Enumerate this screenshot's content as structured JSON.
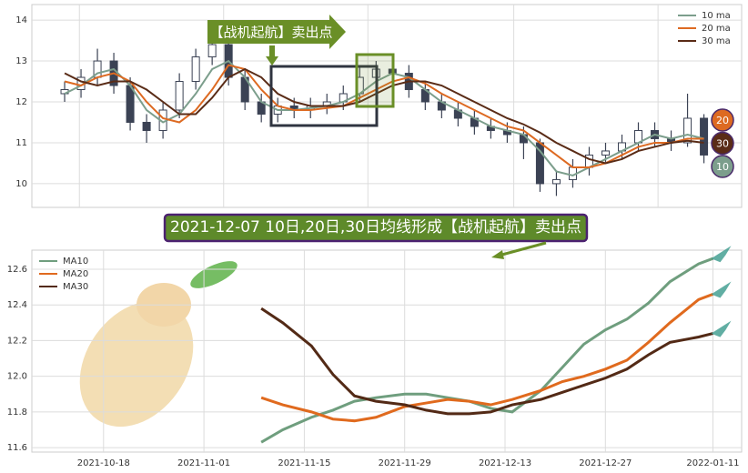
{
  "chart_data": [
    {
      "type": "candlestick",
      "ohlc": [
        [
          12.2,
          12.5,
          12.0,
          12.3
        ],
        [
          12.3,
          12.8,
          12.1,
          12.6
        ],
        [
          12.6,
          13.3,
          12.4,
          13.0
        ],
        [
          13.0,
          13.2,
          12.2,
          12.4
        ],
        [
          12.4,
          12.6,
          11.3,
          11.5
        ],
        [
          11.5,
          11.7,
          11.0,
          11.3
        ],
        [
          11.3,
          12.0,
          11.1,
          11.8
        ],
        [
          11.8,
          12.7,
          11.6,
          12.5
        ],
        [
          12.5,
          13.3,
          12.3,
          13.1
        ],
        [
          13.1,
          14.0,
          12.9,
          13.4
        ],
        [
          13.4,
          13.6,
          12.4,
          12.6
        ],
        [
          12.6,
          12.8,
          11.8,
          12.0
        ],
        [
          12.0,
          12.2,
          11.5,
          11.7
        ],
        [
          11.7,
          12.1,
          11.5,
          11.9
        ],
        [
          11.9,
          12.1,
          11.6,
          11.8
        ],
        [
          11.8,
          12.1,
          11.6,
          11.9
        ],
        [
          11.9,
          12.2,
          11.7,
          12.0
        ],
        [
          12.0,
          12.4,
          11.8,
          12.2
        ],
        [
          12.2,
          12.9,
          12.0,
          12.6
        ],
        [
          12.6,
          13.0,
          12.4,
          12.8
        ],
        [
          12.8,
          12.9,
          12.5,
          12.7
        ],
        [
          12.7,
          12.9,
          12.1,
          12.3
        ],
        [
          12.3,
          12.5,
          11.8,
          12.0
        ],
        [
          12.0,
          12.2,
          11.6,
          11.8
        ],
        [
          11.8,
          12.0,
          11.4,
          11.6
        ],
        [
          11.6,
          11.8,
          11.2,
          11.4
        ],
        [
          11.4,
          11.6,
          11.1,
          11.3
        ],
        [
          11.3,
          11.5,
          11.0,
          11.2
        ],
        [
          11.2,
          11.4,
          10.6,
          11.0
        ],
        [
          11.0,
          11.1,
          9.8,
          10.0
        ],
        [
          10.0,
          10.3,
          9.7,
          10.1
        ],
        [
          10.1,
          10.6,
          9.9,
          10.4
        ],
        [
          10.4,
          10.9,
          10.2,
          10.7
        ],
        [
          10.7,
          11.0,
          10.5,
          10.8
        ],
        [
          10.8,
          11.2,
          10.6,
          11.0
        ],
        [
          11.0,
          11.5,
          10.8,
          11.3
        ],
        [
          11.3,
          11.5,
          10.9,
          11.1
        ],
        [
          11.1,
          11.3,
          10.8,
          11.0
        ],
        [
          11.0,
          12.2,
          10.9,
          11.6
        ],
        [
          11.6,
          11.7,
          10.5,
          10.7
        ]
      ],
      "candle_color": "#3b4254",
      "xlim": [
        -2,
        41.3
      ],
      "xticks": [
        0.9,
        9.7,
        18.5,
        27.4,
        36.2
      ],
      "ylim": [
        9.42,
        14.38
      ],
      "yticks": [
        10,
        11,
        12,
        13,
        14
      ],
      "grid": true,
      "legend": "upper right",
      "series": [
        {
          "name": "10 ma",
          "color": "#7c9e8c",
          "values": [
            12.2,
            12.4,
            12.7,
            12.8,
            12.4,
            11.8,
            11.5,
            11.7,
            12.2,
            12.8,
            13.0,
            12.6,
            12.0,
            11.8,
            11.8,
            11.85,
            11.9,
            12.0,
            12.2,
            12.5,
            12.7,
            12.6,
            12.3,
            12.0,
            11.8,
            11.6,
            11.4,
            11.3,
            11.2,
            10.8,
            10.3,
            10.2,
            10.4,
            10.6,
            10.8,
            11.0,
            11.2,
            11.1,
            11.2,
            11.1
          ]
        },
        {
          "name": "20 ma",
          "color": "#dd6a22",
          "values": [
            12.5,
            12.4,
            12.6,
            12.7,
            12.5,
            12.0,
            11.6,
            11.5,
            11.8,
            12.3,
            12.9,
            12.8,
            12.3,
            11.9,
            11.8,
            11.8,
            11.85,
            11.9,
            12.1,
            12.3,
            12.5,
            12.6,
            12.45,
            12.2,
            12.0,
            11.8,
            11.6,
            11.4,
            11.3,
            11.0,
            10.7,
            10.4,
            10.4,
            10.5,
            10.7,
            10.9,
            11.0,
            11.0,
            11.1,
            11.1
          ]
        },
        {
          "name": "30 ma",
          "color": "#5a2c17",
          "values": [
            12.7,
            12.5,
            12.4,
            12.5,
            12.5,
            12.3,
            12.0,
            11.7,
            11.7,
            12.1,
            12.6,
            12.8,
            12.6,
            12.2,
            12.0,
            11.9,
            11.9,
            11.9,
            12.0,
            12.2,
            12.4,
            12.5,
            12.5,
            12.4,
            12.2,
            12.0,
            11.8,
            11.6,
            11.45,
            11.25,
            11.0,
            10.8,
            10.6,
            10.5,
            10.6,
            10.8,
            10.9,
            11.0,
            11.05,
            11.0
          ]
        }
      ],
      "annotation": "【战机起航】卖出点",
      "badges": [
        {
          "text": "20",
          "color": "#dd6a22"
        },
        {
          "text": "30",
          "color": "#5a2c17"
        },
        {
          "text": "10",
          "color": "#7c9e8c"
        }
      ]
    },
    {
      "type": "line",
      "title": "2021-12-07 10日,20日,30日均线形成【战机起航】卖出点",
      "x": [
        "2021-11-09",
        "2021-11-12",
        "2021-11-16",
        "2021-11-19",
        "2021-11-22",
        "2021-11-25",
        "2021-11-29",
        "2021-12-02",
        "2021-12-05",
        "2021-12-08",
        "2021-12-11",
        "2021-12-14",
        "2021-12-18",
        "2021-12-21",
        "2021-12-24",
        "2021-12-27",
        "2021-12-30",
        "2022-01-02",
        "2022-01-05",
        "2022-01-09",
        "2022-01-11"
      ],
      "xlim": [
        "2021-10-08",
        "2022-01-15"
      ],
      "xticks": [
        "2021-10-18",
        "2021-11-01",
        "2021-11-15",
        "2021-11-29",
        "2021-12-13",
        "2021-12-27",
        "2022-01-11"
      ],
      "ylim": [
        11.575,
        12.707
      ],
      "yticks": [
        11.6,
        11.8,
        {
          "value": 12.0,
          "label": "12.0"
        },
        12.2,
        12.4,
        12.6
      ],
      "grid": true,
      "legend": "upper left",
      "series": [
        {
          "name": "MA10",
          "color": "#6f9e7e",
          "values": [
            11.63,
            11.7,
            11.77,
            11.81,
            11.86,
            11.88,
            11.9,
            11.9,
            11.88,
            11.86,
            11.82,
            11.8,
            11.92,
            12.05,
            12.18,
            12.26,
            12.32,
            12.41,
            12.53,
            12.63,
            12.66
          ]
        },
        {
          "name": "MA20",
          "color": "#e06a1e",
          "values": [
            11.88,
            11.84,
            11.8,
            11.76,
            11.75,
            11.77,
            11.83,
            11.85,
            11.87,
            11.86,
            11.84,
            11.87,
            11.92,
            11.97,
            12.0,
            12.04,
            12.09,
            12.19,
            12.3,
            12.43,
            12.46
          ]
        },
        {
          "name": "MA30",
          "color": "#532a16",
          "values": [
            12.38,
            12.3,
            12.17,
            12.01,
            11.89,
            11.86,
            11.84,
            11.81,
            11.79,
            11.79,
            11.8,
            11.84,
            11.87,
            11.91,
            11.95,
            11.99,
            12.04,
            12.12,
            12.19,
            12.22,
            12.24
          ]
        }
      ]
    }
  ]
}
